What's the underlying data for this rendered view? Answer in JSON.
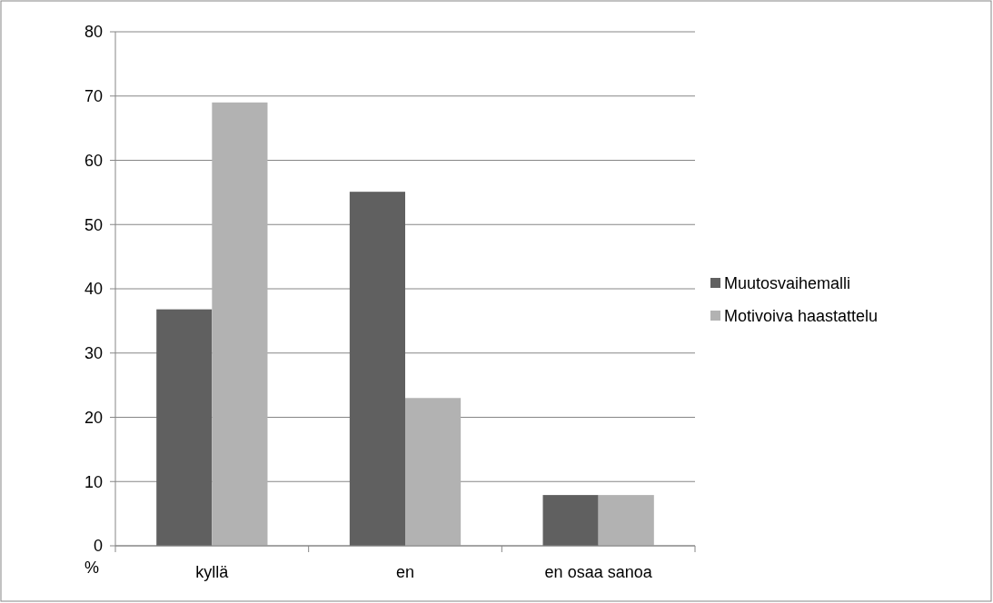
{
  "chart_data": {
    "type": "bar",
    "ylabel": "%",
    "categories": [
      "kyllä",
      "en",
      "en osaa sanoa"
    ],
    "series": [
      {
        "name": "Muutosvaihemalli",
        "color": "#606060",
        "values": [
          36.8,
          55.1,
          7.9
        ]
      },
      {
        "name": "Motivoiva haastattelu",
        "color": "#b2b2b2",
        "values": [
          69,
          23,
          7.9
        ]
      }
    ],
    "ylim": [
      0,
      80
    ],
    "yticks": [
      0,
      10,
      20,
      30,
      40,
      50,
      60,
      70,
      80
    ],
    "grid": "y",
    "legend": "right"
  }
}
